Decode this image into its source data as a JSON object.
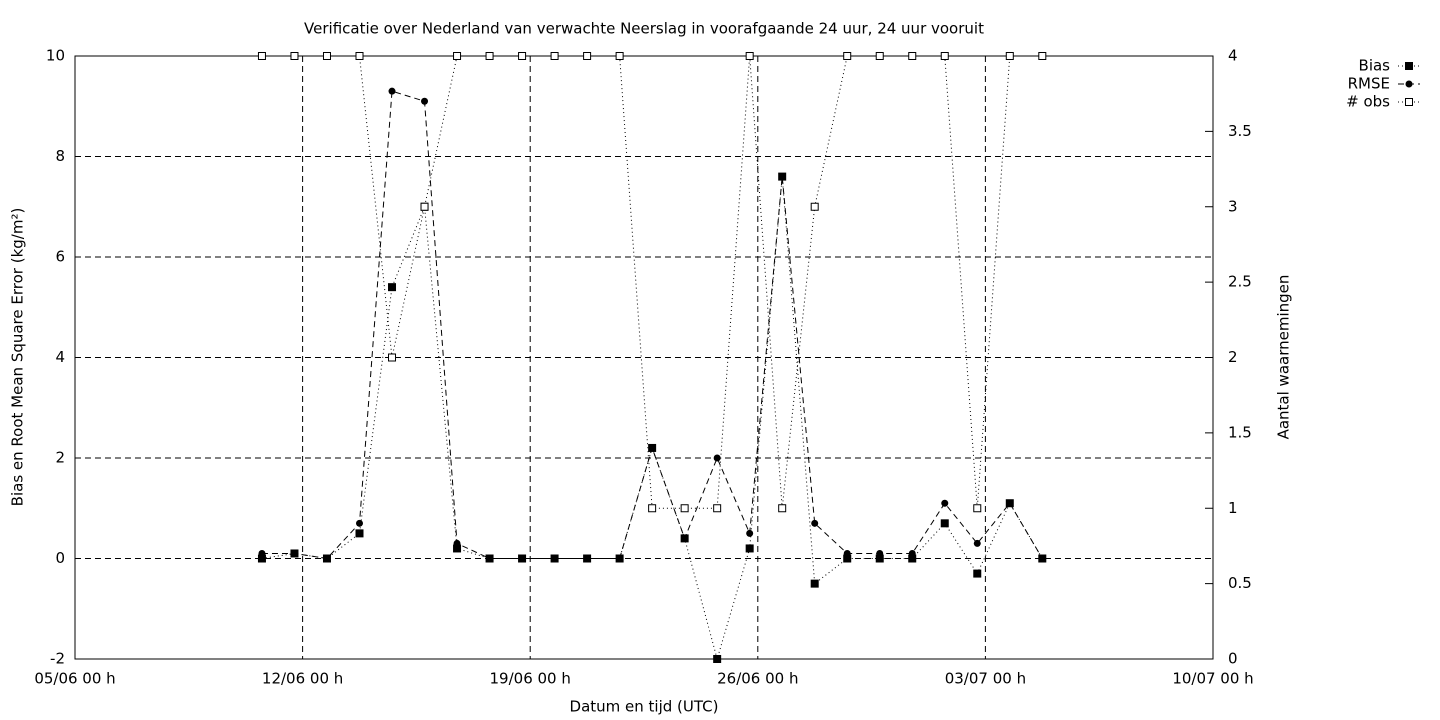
{
  "chart_data": {
    "type": "line",
    "title": "Verificatie over Nederland van verwachte Neerslag in voorafgaande 24 uur, 24 uur vooruit",
    "x_label": "Datum en tijd (UTC)",
    "y_label": "Bias en Root Mean Square Error (kg/m²)",
    "y2_label": "Aantal waarnemingen",
    "x": [
      5.75,
      6.75,
      7.75,
      8.75,
      9.75,
      10.75,
      11.75,
      12.75,
      13.75,
      14.75,
      15.75,
      16.75,
      17.75,
      18.75,
      19.75,
      20.75,
      21.75,
      22.75,
      23.75,
      24.75,
      25.75,
      26.75,
      27.75,
      28.75,
      29.75
    ],
    "series": [
      {
        "name": "Bias",
        "color": "#000000",
        "line_style": "dotted",
        "marker": "square-filled",
        "values": [
          0,
          0.1,
          0,
          0.5,
          5.4,
          7.0,
          0.2,
          0,
          0,
          0,
          0,
          0,
          2.2,
          0.4,
          -2,
          0.2,
          7.6,
          -0.5,
          0,
          0,
          0,
          0.7,
          -0.3,
          1.1,
          0
        ]
      },
      {
        "name": "RMSE",
        "color": "#000000",
        "line_style": "dashed",
        "marker": "circle-filled",
        "values": [
          0.1,
          0.1,
          0,
          0.7,
          9.3,
          9.1,
          0.3,
          0,
          0,
          0,
          0,
          0,
          2.2,
          0.4,
          2.0,
          0.5,
          7.6,
          0.7,
          0.1,
          0.1,
          0.1,
          1.1,
          0.3,
          1.1,
          0
        ]
      },
      {
        "name": "# obs",
        "color": "#000000",
        "line_style": "dotted",
        "marker": "square-open",
        "axis": "y2",
        "values": [
          4,
          4,
          4,
          4,
          2,
          3,
          4,
          4,
          4,
          4,
          4,
          4,
          1,
          1,
          1,
          4,
          1,
          3,
          4,
          4,
          4,
          4,
          1,
          4,
          4
        ]
      }
    ],
    "xlim": [
      0,
      35
    ],
    "xticks": [
      {
        "value": 0,
        "label": "05/06 00 h"
      },
      {
        "value": 7,
        "label": "12/06 00 h"
      },
      {
        "value": 14,
        "label": "19/06 00 h"
      },
      {
        "value": 21,
        "label": "26/06 00 h"
      },
      {
        "value": 28,
        "label": "03/07 00 h"
      },
      {
        "value": 35,
        "label": "10/07 00 h"
      }
    ],
    "ylim": [
      -2,
      10
    ],
    "yticks": [
      -2,
      0,
      2,
      4,
      6,
      8,
      10
    ],
    "y2lim": [
      0,
      4
    ],
    "y2ticks": [
      0,
      0.5,
      1,
      1.5,
      2,
      2.5,
      3,
      3.5,
      4
    ],
    "grid": true,
    "legend": "outside-top-right"
  }
}
